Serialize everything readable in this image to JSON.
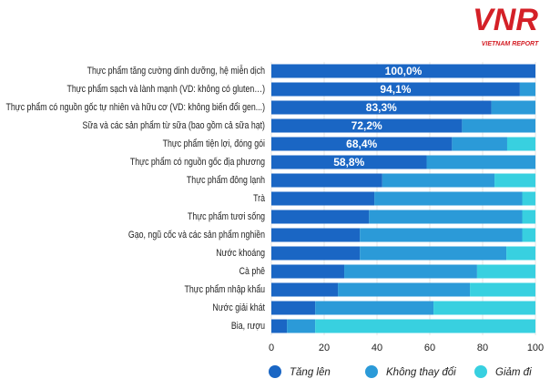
{
  "logo": {
    "mark": "VNR",
    "name": "VIETNAM REPORT"
  },
  "chart_data": {
    "type": "stacked-barh",
    "categories": [
      "Thực phẩm tăng cường dinh dưỡng, hệ miễn dịch",
      "Thực phẩm sạch và lành mạnh (VD: không có gluten…)",
      "Thực phẩm có nguồn gốc tự nhiên và hữu cơ (VD: không biến đổi gen...)",
      "Sữa và các sản phẩm từ sữa (bao gồm cả sữa hạt)",
      "Thực phẩm tiện lợi, đóng gói",
      "Thực phẩm có nguồn gốc địa phương",
      "Thực phẩm đông lạnh",
      "Trà",
      "Thực phẩm tươi sống",
      "Gạo, ngũ cốc và các sản phẩm nghiền",
      "Nước khoáng",
      "Cà phê",
      "Thực phẩm nhập khẩu",
      "Nước giải khát",
      "Bia, rượu"
    ],
    "series": [
      {
        "name": "Tăng lên",
        "color": "#1a66c4",
        "values": [
          100,
          94.1,
          83.3,
          72.2,
          68.4,
          58.8,
          42,
          39,
          37,
          33.5,
          33.5,
          27.6,
          25.2,
          16.6,
          5.9
        ],
        "value_labels": [
          "100,0%",
          "94,1%",
          "83,3%",
          "72,2%",
          "68,4%",
          "58,8%",
          null,
          null,
          null,
          null,
          null,
          null,
          null,
          null,
          null
        ]
      },
      {
        "name": "Không thay đổi",
        "color": "#2b9ad8",
        "values": [
          0,
          5.9,
          16.7,
          27.8,
          20.9,
          41.2,
          42.5,
          56,
          58,
          61.5,
          55.5,
          50.3,
          50,
          44.8,
          10.7
        ]
      },
      {
        "name": "Giảm đi",
        "color": "#38d0e0",
        "values": [
          0,
          0,
          0,
          0,
          10.7,
          0,
          15.5,
          5,
          5,
          5,
          11,
          22.1,
          24.8,
          38.6,
          83.4
        ]
      }
    ],
    "xlim": [
      0,
      100
    ],
    "xticks": [
      0,
      20,
      40,
      60,
      80,
      100
    ],
    "grid": true
  }
}
